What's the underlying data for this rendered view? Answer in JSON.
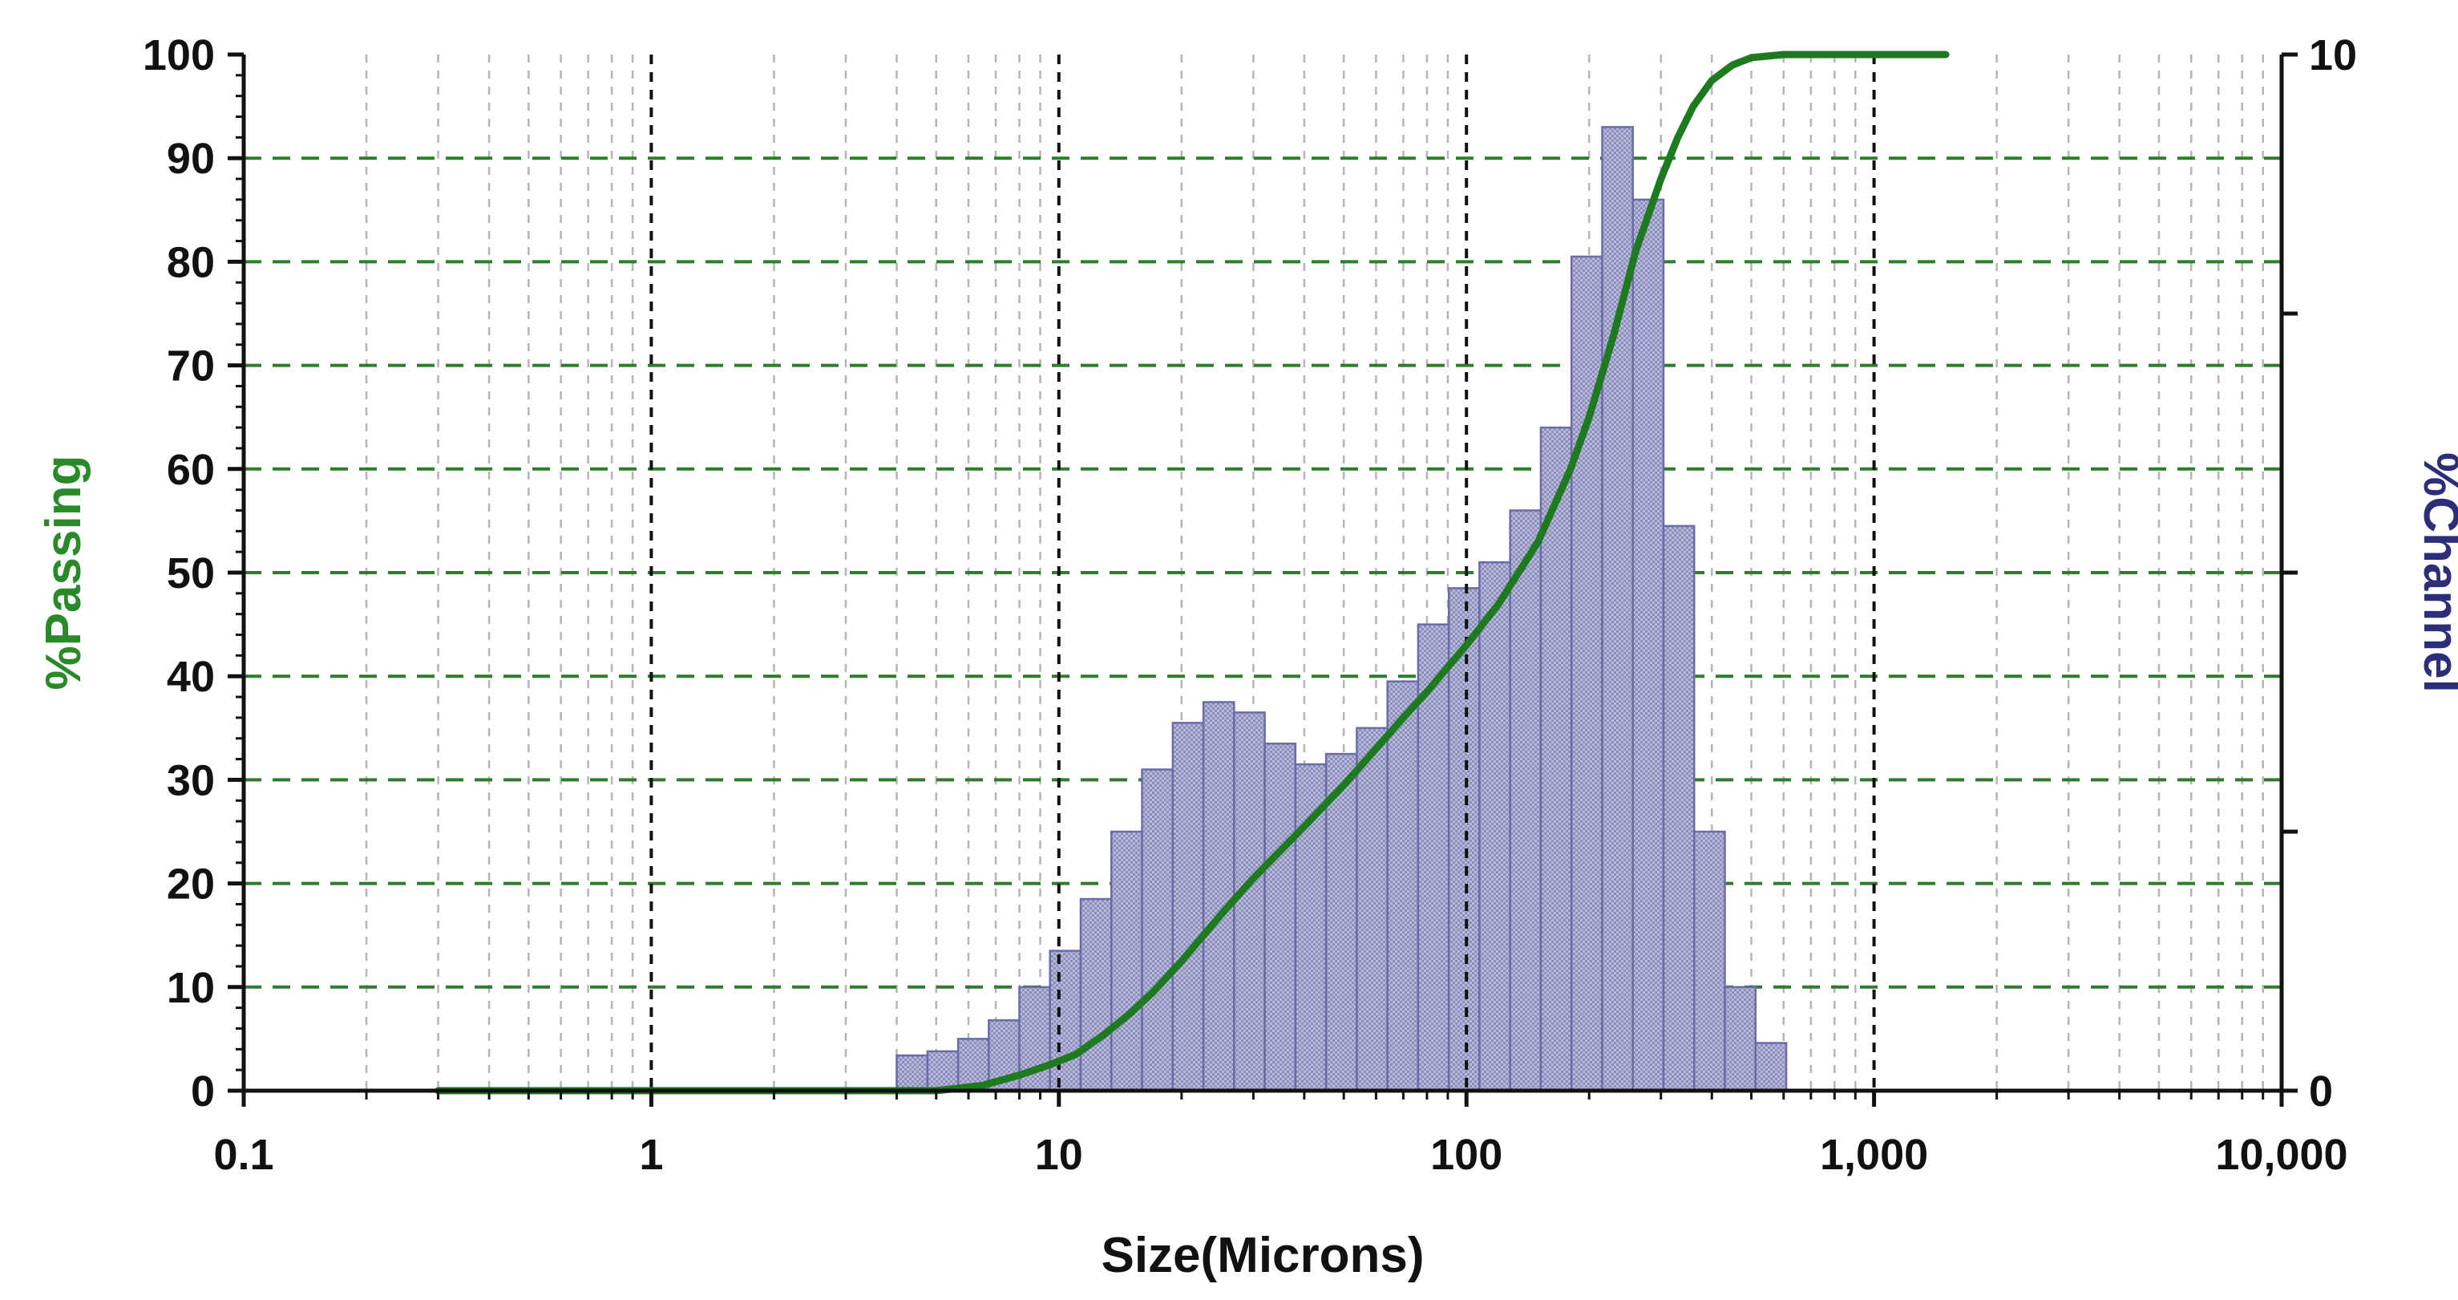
{
  "chart_data": {
    "type": "bar+line",
    "title": "",
    "xlabel": "Size(Microns)",
    "ylabel_left": "%Passing",
    "ylabel_right": "%Channel",
    "x_scale": "log",
    "xlim": [
      0.1,
      10000
    ],
    "ylim_left": [
      0,
      100
    ],
    "ylim_right": [
      0,
      10
    ],
    "x_ticks": [
      0.1,
      1,
      10,
      100,
      1000,
      10000
    ],
    "x_tick_labels": [
      "0.1",
      "1",
      "10",
      "100",
      "1,000",
      "10,000"
    ],
    "y_left_ticks": [
      0,
      10,
      20,
      30,
      40,
      50,
      60,
      70,
      80,
      90,
      100
    ],
    "y_left_tick_labels": [
      "0",
      "10",
      "20",
      "30",
      "40",
      "50",
      "60",
      "70",
      "80",
      "90",
      "100"
    ],
    "y_right_ticks": [
      0,
      10
    ],
    "y_right_tick_labels": [
      "0",
      "10"
    ],
    "grid": true,
    "colors": {
      "passing_line": "#1e7a1e",
      "channel_bar_fill": "#b7b8d6",
      "channel_bar_edge": "#6a6ca8",
      "major_grid_y": "#2d7d2d",
      "major_grid_x": "#111111",
      "minor_grid": "#b5b5b5",
      "left_title": "#2a8a2a",
      "right_title": "#2b2f7a"
    },
    "bin_edges": [
      4.0,
      4.76,
      5.66,
      6.73,
      8.0,
      9.51,
      11.31,
      13.45,
      16.0,
      19.03,
      22.63,
      26.91,
      32.0,
      38.05,
      45.25,
      53.82,
      64.0,
      76.11,
      90.51,
      107.6,
      128.0,
      152.2,
      181.0,
      215.3,
      256.0,
      304.4,
      362.0,
      430.5,
      512.0,
      608.9
    ],
    "channel_values": [
      0.34,
      0.38,
      0.5,
      0.68,
      1.0,
      1.35,
      1.85,
      2.5,
      3.1,
      3.55,
      3.75,
      3.65,
      3.35,
      3.15,
      3.25,
      3.5,
      3.95,
      4.5,
      4.85,
      5.1,
      5.6,
      6.4,
      8.05,
      9.3,
      8.6,
      5.45,
      2.5,
      1.0,
      0.46
    ],
    "series": [
      {
        "name": "%Passing",
        "x": [
          0.3,
          1,
          3,
          5,
          6.5,
          8,
          9.5,
          11,
          13,
          15,
          17,
          20,
          25,
          30,
          40,
          50,
          60,
          70,
          80,
          100,
          120,
          150,
          180,
          200,
          230,
          260,
          300,
          330,
          360,
          400,
          450,
          500,
          600,
          1000,
          1500
        ],
        "y": [
          0,
          0,
          0,
          0,
          0.5,
          1.5,
          2.5,
          3.5,
          5.5,
          7.5,
          9.5,
          12.5,
          17,
          20.5,
          25.5,
          29.5,
          33,
          36,
          38.5,
          43,
          47,
          53,
          60,
          65,
          73,
          81,
          88,
          92,
          95,
          97.5,
          99,
          99.7,
          100,
          100,
          100
        ]
      }
    ]
  }
}
